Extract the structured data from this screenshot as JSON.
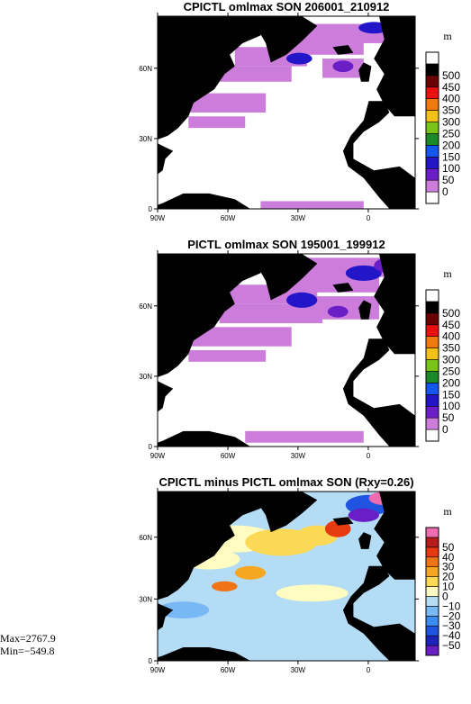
{
  "chart_data": [
    {
      "type": "heatmap",
      "title": "CPICTL omlmax SON 206001_210912",
      "units": "m",
      "x_ticks": [
        "90W",
        "60W",
        "30W",
        "0"
      ],
      "y_ticks": [
        "0",
        "30N",
        "60N"
      ],
      "colorbar": {
        "labels": [
          "0",
          "50",
          "100",
          "150",
          "200",
          "250",
          "300",
          "350",
          "400",
          "450",
          "500"
        ],
        "colors": [
          "#ffffff",
          "#cc7ddb",
          "#6a1fc6",
          "#2216c8",
          "#1357f0",
          "#1a8a2a",
          "#7ac41a",
          "#f2c21a",
          "#f07a0e",
          "#e81010",
          "#6a0000",
          "#000000",
          "#ffffff"
        ]
      }
    },
    {
      "type": "heatmap",
      "title": "PICTL omlmax SON 195001_199912",
      "units": "m",
      "x_ticks": [
        "90W",
        "60W",
        "30W",
        "0"
      ],
      "y_ticks": [
        "0",
        "30N",
        "60N"
      ],
      "colorbar": {
        "labels": [
          "0",
          "50",
          "100",
          "150",
          "200",
          "250",
          "300",
          "350",
          "400",
          "450",
          "500"
        ],
        "colors": [
          "#ffffff",
          "#cc7ddb",
          "#6a1fc6",
          "#2216c8",
          "#1357f0",
          "#1a8a2a",
          "#7ac41a",
          "#f2c21a",
          "#f07a0e",
          "#e81010",
          "#6a0000",
          "#000000",
          "#ffffff"
        ]
      }
    },
    {
      "type": "heatmap",
      "title": "CPICTL minus PICTL omlmax SON (Rxy=0.26)",
      "units": "m",
      "x_ticks": [
        "90W",
        "60W",
        "30W",
        "0"
      ],
      "y_ticks": [
        "0",
        "30N",
        "60N"
      ],
      "colorbar": {
        "labels": [
          "−50",
          "−40",
          "−30",
          "−20",
          "−10",
          "0",
          "10",
          "20",
          "30",
          "40",
          "50"
        ],
        "colors": [
          "#6a1fc6",
          "#1c24b8",
          "#1f53e0",
          "#3d8cf0",
          "#78b8f5",
          "#b4dcf5",
          "#fefcc0",
          "#fbd955",
          "#f5a623",
          "#f07416",
          "#e83a10",
          "#b71a1a",
          "#f06cb0"
        ]
      },
      "stats": {
        "max": "Max=2767.9",
        "min": "Min=−549.8"
      }
    }
  ]
}
